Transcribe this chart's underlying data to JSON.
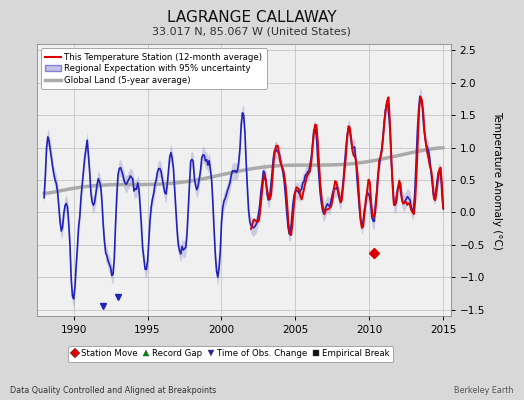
{
  "title": "LAGRANGE CALLAWAY",
  "subtitle": "33.017 N, 85.067 W (United States)",
  "ylabel": "Temperature Anomaly (°C)",
  "xlim": [
    1987.5,
    2015.5
  ],
  "ylim": [
    -1.6,
    2.6
  ],
  "yticks": [
    -1.5,
    -1.0,
    -0.5,
    0,
    0.5,
    1.0,
    1.5,
    2.0,
    2.5
  ],
  "xticks": [
    1990,
    1995,
    2000,
    2005,
    2010,
    2015
  ],
  "footer_left": "Data Quality Controlled and Aligned at Breakpoints",
  "footer_right": "Berkeley Earth",
  "bg_color": "#d8d8d8",
  "plot_bg_color": "#f0f0f0",
  "legend_items": [
    {
      "label": "This Temperature Station (12-month average)",
      "color": "#dd0000",
      "lw": 1.5
    },
    {
      "label": "Regional Expectation with 95% uncertainty",
      "color": "#2222bb",
      "lw": 1.2
    },
    {
      "label": "Global Land (5-year average)",
      "color": "#aaaaaa",
      "lw": 2.5
    }
  ],
  "marker_items": [
    {
      "label": "Station Move",
      "marker": "D",
      "color": "#dd0000"
    },
    {
      "label": "Record Gap",
      "marker": "^",
      "color": "#008800"
    },
    {
      "label": "Time of Obs. Change",
      "marker": "v",
      "color": "#2222bb"
    },
    {
      "label": "Empirical Break",
      "marker": "s",
      "color": "#111111"
    }
  ],
  "tobs_years": [
    1992.0,
    1993.0
  ],
  "tobs_vals": [
    -1.45,
    -1.3
  ],
  "smove_years": [
    2010.3
  ],
  "smove_vals": [
    -0.62
  ]
}
